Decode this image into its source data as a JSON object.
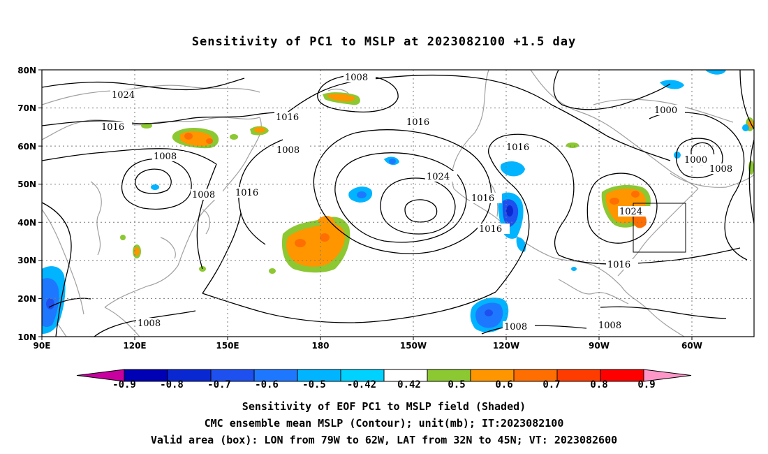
{
  "title": "Sensitivity of PC1 to MSLP at 2023082100 +1.5 day",
  "map": {
    "lat_labels": [
      "80N",
      "70N",
      "60N",
      "50N",
      "40N",
      "30N",
      "20N",
      "10N"
    ],
    "lon_labels": [
      "90E",
      "120E",
      "150E",
      "180",
      "150W",
      "120W",
      "90W",
      "60W"
    ],
    "contour_labels": [
      "1024",
      "1016",
      "1008",
      "1008",
      "1016",
      "1008",
      "1016",
      "1008",
      "1016",
      "1024",
      "1016",
      "1016",
      "1016",
      "1024",
      "1000",
      "1000",
      "1008",
      "1016",
      "1008",
      "1008",
      "1008"
    ],
    "contour_color": "#000000",
    "coast_color": "#a0a0a0",
    "valid_box": {
      "lon_from": "79W",
      "lon_to": "62W",
      "lat_from": "32N",
      "lat_to": "45N"
    }
  },
  "colorbar": {
    "labels": [
      "-0.9",
      "-0.8",
      "-0.7",
      "-0.6",
      "-0.5",
      "-0.42",
      "0.42",
      "0.5",
      "0.6",
      "0.7",
      "0.8",
      "0.9"
    ],
    "colors": [
      "#c800a0",
      "#0000b4",
      "#0a28d2",
      "#1e50f0",
      "#1e78ff",
      "#00b4ff",
      "#00d2ff",
      "#ffffff",
      "#8cc832",
      "#ff9600",
      "#ff6e00",
      "#ff3c00",
      "#ff0000",
      "#ff96c8"
    ]
  },
  "captions": [
    "Sensitivity of EOF PC1 to MSLP field (Shaded)",
    "CMC ensemble mean MSLP (Contour); unit(mb); IT:2023082100",
    "Valid area (box): LON from 79W to 62W, LAT from 32N to 45N; VT: 2023082600"
  ]
}
